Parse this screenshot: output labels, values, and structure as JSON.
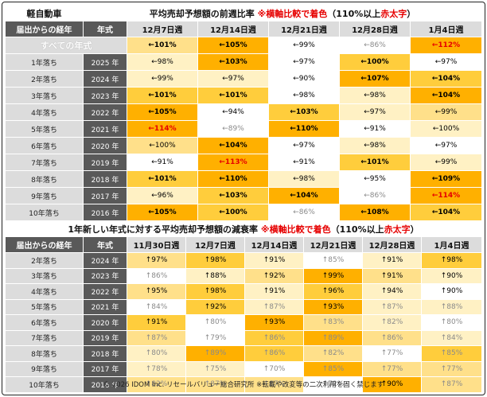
{
  "colors": {
    "c1": "#ffb000",
    "c2": "#ffcd3c",
    "c3": "#ffe08a",
    "c4": "#fff1c4",
    "c0": "#ffffff",
    "header_dark": "#595959",
    "header_light": "#dcdcdc",
    "highlight_red": "#e60000"
  },
  "table1": {
    "title_left": "軽自動車",
    "title_main": "平均売却予想額の前週比率",
    "title_note": "※横軸比較で着色",
    "title_paren_open": "（110%以上",
    "title_red": "赤太字",
    "title_paren_close": "）",
    "header_label": "届出からの経年",
    "header_year": "年式",
    "weeks": [
      "12月7日週",
      "12月14日週",
      "12月21日週",
      "12月28日週",
      "1月4日週"
    ],
    "all_label": "すべての年式",
    "all_cells": [
      {
        "text": "←101%",
        "color": "c3",
        "bold": true,
        "red": false,
        "gray": false
      },
      {
        "text": "←105%",
        "color": "c1",
        "bold": true,
        "red": false,
        "gray": false
      },
      {
        "text": "←99%",
        "color": "c0",
        "bold": false,
        "red": false,
        "gray": false
      },
      {
        "text": "←86%",
        "color": "c0",
        "bold": false,
        "red": false,
        "gray": true
      },
      {
        "text": "←112%",
        "color": "c1",
        "bold": true,
        "red": true,
        "gray": false
      }
    ],
    "rows": [
      {
        "label": "1年落ち",
        "year": "2025 年",
        "cells": [
          {
            "text": "←98%",
            "color": "c4",
            "bold": false,
            "red": false,
            "gray": false
          },
          {
            "text": "←103%",
            "color": "c1",
            "bold": true,
            "red": false,
            "gray": false
          },
          {
            "text": "←97%",
            "color": "c0",
            "bold": false,
            "red": false,
            "gray": false
          },
          {
            "text": "←100%",
            "color": "c2",
            "bold": true,
            "red": false,
            "gray": false
          },
          {
            "text": "←97%",
            "color": "c0",
            "bold": false,
            "red": false,
            "gray": false
          }
        ]
      },
      {
        "label": "2年落ち",
        "year": "2024 年",
        "cells": [
          {
            "text": "←99%",
            "color": "c4",
            "bold": false,
            "red": false,
            "gray": false
          },
          {
            "text": "←97%",
            "color": "c4",
            "bold": false,
            "red": false,
            "gray": false
          },
          {
            "text": "←90%",
            "color": "c0",
            "bold": false,
            "red": false,
            "gray": false
          },
          {
            "text": "←107%",
            "color": "c1",
            "bold": true,
            "red": false,
            "gray": false
          },
          {
            "text": "←104%",
            "color": "c2",
            "bold": true,
            "red": false,
            "gray": false
          }
        ]
      },
      {
        "label": "3年落ち",
        "year": "2023 年",
        "cells": [
          {
            "text": "←101%",
            "color": "c2",
            "bold": true,
            "red": false,
            "gray": false
          },
          {
            "text": "←101%",
            "color": "c2",
            "bold": true,
            "red": false,
            "gray": false
          },
          {
            "text": "←98%",
            "color": "c0",
            "bold": false,
            "red": false,
            "gray": false
          },
          {
            "text": "←98%",
            "color": "c4",
            "bold": false,
            "red": false,
            "gray": false
          },
          {
            "text": "←104%",
            "color": "c1",
            "bold": true,
            "red": false,
            "gray": false
          }
        ]
      },
      {
        "label": "4年落ち",
        "year": "2022 年",
        "cells": [
          {
            "text": "←105%",
            "color": "c1",
            "bold": true,
            "red": false,
            "gray": false
          },
          {
            "text": "←94%",
            "color": "c0",
            "bold": false,
            "red": false,
            "gray": false
          },
          {
            "text": "←103%",
            "color": "c2",
            "bold": true,
            "red": false,
            "gray": false
          },
          {
            "text": "←97%",
            "color": "c4",
            "bold": false,
            "red": false,
            "gray": false
          },
          {
            "text": "←99%",
            "color": "c3",
            "bold": false,
            "red": false,
            "gray": false
          }
        ]
      },
      {
        "label": "5年落ち",
        "year": "2021 年",
        "cells": [
          {
            "text": "←114%",
            "color": "c1",
            "bold": true,
            "red": true,
            "gray": false
          },
          {
            "text": "←89%",
            "color": "c0",
            "bold": false,
            "red": false,
            "gray": true
          },
          {
            "text": "←110%",
            "color": "c1",
            "bold": true,
            "red": false,
            "gray": false
          },
          {
            "text": "←91%",
            "color": "c0",
            "bold": false,
            "red": false,
            "gray": false
          },
          {
            "text": "←100%",
            "color": "c4",
            "bold": false,
            "red": false,
            "gray": false
          }
        ]
      },
      {
        "label": "6年落ち",
        "year": "2020 年",
        "cells": [
          {
            "text": "←100%",
            "color": "c3",
            "bold": false,
            "red": false,
            "gray": false
          },
          {
            "text": "←104%",
            "color": "c1",
            "bold": true,
            "red": false,
            "gray": false
          },
          {
            "text": "←97%",
            "color": "c0",
            "bold": false,
            "red": false,
            "gray": false
          },
          {
            "text": "←98%",
            "color": "c4",
            "bold": false,
            "red": false,
            "gray": false
          },
          {
            "text": "←97%",
            "color": "c0",
            "bold": false,
            "red": false,
            "gray": false
          }
        ]
      },
      {
        "label": "7年落ち",
        "year": "2019 年",
        "cells": [
          {
            "text": "←91%",
            "color": "c0",
            "bold": false,
            "red": false,
            "gray": false
          },
          {
            "text": "←113%",
            "color": "c1",
            "bold": true,
            "red": true,
            "gray": false
          },
          {
            "text": "←91%",
            "color": "c0",
            "bold": false,
            "red": false,
            "gray": false
          },
          {
            "text": "←101%",
            "color": "c2",
            "bold": true,
            "red": false,
            "gray": false
          },
          {
            "text": "←99%",
            "color": "c4",
            "bold": false,
            "red": false,
            "gray": false
          }
        ]
      },
      {
        "label": "8年落ち",
        "year": "2018 年",
        "cells": [
          {
            "text": "←101%",
            "color": "c2",
            "bold": true,
            "red": false,
            "gray": false
          },
          {
            "text": "←110%",
            "color": "c1",
            "bold": true,
            "red": false,
            "gray": false
          },
          {
            "text": "←98%",
            "color": "c4",
            "bold": false,
            "red": false,
            "gray": false
          },
          {
            "text": "←95%",
            "color": "c0",
            "bold": false,
            "red": false,
            "gray": false
          },
          {
            "text": "←109%",
            "color": "c1",
            "bold": true,
            "red": false,
            "gray": false
          }
        ]
      },
      {
        "label": "9年落ち",
        "year": "2017 年",
        "cells": [
          {
            "text": "←96%",
            "color": "c4",
            "bold": false,
            "red": false,
            "gray": false
          },
          {
            "text": "←103%",
            "color": "c2",
            "bold": true,
            "red": false,
            "gray": false
          },
          {
            "text": "←104%",
            "color": "c1",
            "bold": true,
            "red": false,
            "gray": false
          },
          {
            "text": "←86%",
            "color": "c0",
            "bold": false,
            "red": false,
            "gray": true
          },
          {
            "text": "←114%",
            "color": "c1",
            "bold": true,
            "red": true,
            "gray": false
          }
        ]
      },
      {
        "label": "10年落ち",
        "year": "2016 年",
        "cells": [
          {
            "text": "←105%",
            "color": "c1",
            "bold": true,
            "red": false,
            "gray": false
          },
          {
            "text": "←100%",
            "color": "c2",
            "bold": true,
            "red": false,
            "gray": false
          },
          {
            "text": "←86%",
            "color": "c0",
            "bold": false,
            "red": false,
            "gray": true
          },
          {
            "text": "←108%",
            "color": "c1",
            "bold": true,
            "red": false,
            "gray": false
          },
          {
            "text": "←104%",
            "color": "c2",
            "bold": true,
            "red": false,
            "gray": false
          }
        ]
      }
    ]
  },
  "table2": {
    "title_main": "1年新しい年式に対する平均売却予想額の減衰率",
    "title_note": "※横軸比較で着色",
    "title_paren_open": "（110%以上",
    "title_red": "赤太字",
    "title_paren_close": "）",
    "header_label": "届出からの経年",
    "header_year": "年式",
    "weeks": [
      "11月30日週",
      "12月7日週",
      "12月14日週",
      "12月21日週",
      "12月28日週",
      "1月4日週"
    ],
    "rows": [
      {
        "label": "2年落ち",
        "year": "2024 年",
        "cells": [
          {
            "text": "↑97%",
            "color": "c3",
            "gray": false
          },
          {
            "text": "↑98%",
            "color": "c2",
            "gray": false
          },
          {
            "text": "↑91%",
            "color": "c4",
            "gray": false
          },
          {
            "text": "↑85%",
            "color": "c0",
            "gray": true
          },
          {
            "text": "↑91%",
            "color": "c4",
            "gray": false
          },
          {
            "text": "↑98%",
            "color": "c2",
            "gray": false
          }
        ]
      },
      {
        "label": "3年落ち",
        "year": "2023 年",
        "cells": [
          {
            "text": "↑86%",
            "color": "c0",
            "gray": true
          },
          {
            "text": "↑88%",
            "color": "c4",
            "gray": false
          },
          {
            "text": "↑92%",
            "color": "c3",
            "gray": false
          },
          {
            "text": "↑99%",
            "color": "c1",
            "gray": false
          },
          {
            "text": "↑91%",
            "color": "c3",
            "gray": false
          },
          {
            "text": "↑90%",
            "color": "c4",
            "gray": false
          }
        ]
      },
      {
        "label": "4年落ち",
        "year": "2022 年",
        "cells": [
          {
            "text": "↑95%",
            "color": "c3",
            "gray": false
          },
          {
            "text": "↑98%",
            "color": "c2",
            "gray": false
          },
          {
            "text": "↑91%",
            "color": "c4",
            "gray": false
          },
          {
            "text": "↑96%",
            "color": "c2",
            "gray": false
          },
          {
            "text": "↑94%",
            "color": "c4",
            "gray": false
          },
          {
            "text": "↑90%",
            "color": "c0",
            "gray": false
          }
        ]
      },
      {
        "label": "5年落ち",
        "year": "2021 年",
        "cells": [
          {
            "text": "↑84%",
            "color": "c0",
            "gray": true
          },
          {
            "text": "↑92%",
            "color": "c2",
            "gray": false
          },
          {
            "text": "↑87%",
            "color": "c4",
            "gray": true
          },
          {
            "text": "↑93%",
            "color": "c1",
            "gray": false
          },
          {
            "text": "↑87%",
            "color": "c4",
            "gray": true
          },
          {
            "text": "↑88%",
            "color": "c4",
            "gray": true
          }
        ]
      },
      {
        "label": "6年落ち",
        "year": "2020 年",
        "cells": [
          {
            "text": "↑91%",
            "color": "c2",
            "gray": false
          },
          {
            "text": "↑80%",
            "color": "c0",
            "gray": true
          },
          {
            "text": "↑93%",
            "color": "c1",
            "gray": false
          },
          {
            "text": "↑83%",
            "color": "c3",
            "gray": true
          },
          {
            "text": "↑82%",
            "color": "c4",
            "gray": true
          },
          {
            "text": "↑80%",
            "color": "c0",
            "gray": true
          }
        ]
      },
      {
        "label": "7年落ち",
        "year": "2019 年",
        "cells": [
          {
            "text": "↑87%",
            "color": "c3",
            "gray": true
          },
          {
            "text": "↑79%",
            "color": "c0",
            "gray": true
          },
          {
            "text": "↑86%",
            "color": "c2",
            "gray": true
          },
          {
            "text": "↑89%",
            "color": "c1",
            "gray": true
          },
          {
            "text": "↑86%",
            "color": "c3",
            "gray": true
          },
          {
            "text": "↑84%",
            "color": "c4",
            "gray": true
          }
        ]
      },
      {
        "label": "8年落ち",
        "year": "2018 年",
        "cells": [
          {
            "text": "↑80%",
            "color": "c4",
            "gray": true
          },
          {
            "text": "↑89%",
            "color": "c1",
            "gray": true
          },
          {
            "text": "↑86%",
            "color": "c2",
            "gray": true
          },
          {
            "text": "↑82%",
            "color": "c3",
            "gray": true
          },
          {
            "text": "↑77%",
            "color": "c0",
            "gray": true
          },
          {
            "text": "↑85%",
            "color": "c2",
            "gray": true
          }
        ]
      },
      {
        "label": "9年落ち",
        "year": "2017 年",
        "cells": [
          {
            "text": "↑78%",
            "color": "c4",
            "gray": true
          },
          {
            "text": "↑75%",
            "color": "c4",
            "gray": true
          },
          {
            "text": "↑70%",
            "color": "c0",
            "gray": true
          },
          {
            "text": "↑85%",
            "color": "c1",
            "gray": true
          },
          {
            "text": "↑77%",
            "color": "c3",
            "gray": true
          },
          {
            "text": "↑77%",
            "color": "c3",
            "gray": true
          }
        ]
      },
      {
        "label": "10年落ち",
        "year": "2016 年",
        "cells": [
          {
            "text": "↑82%",
            "color": "c3",
            "gray": true
          },
          {
            "text": "↑87%",
            "color": "c3",
            "gray": true
          },
          {
            "text": "↑87%",
            "color": "c3",
            "gray": true
          },
          {
            "text": "↑72%",
            "color": "c0",
            "gray": true
          },
          {
            "text": "↑90%",
            "color": "c1",
            "gray": false
          },
          {
            "text": "↑87%",
            "color": "c3",
            "gray": true
          }
        ]
      }
    ]
  },
  "footer": "© 2026 IDOM Inc. リセールバリュー総合研究所 ※転載や改変等の二次利用を固く禁じます"
}
